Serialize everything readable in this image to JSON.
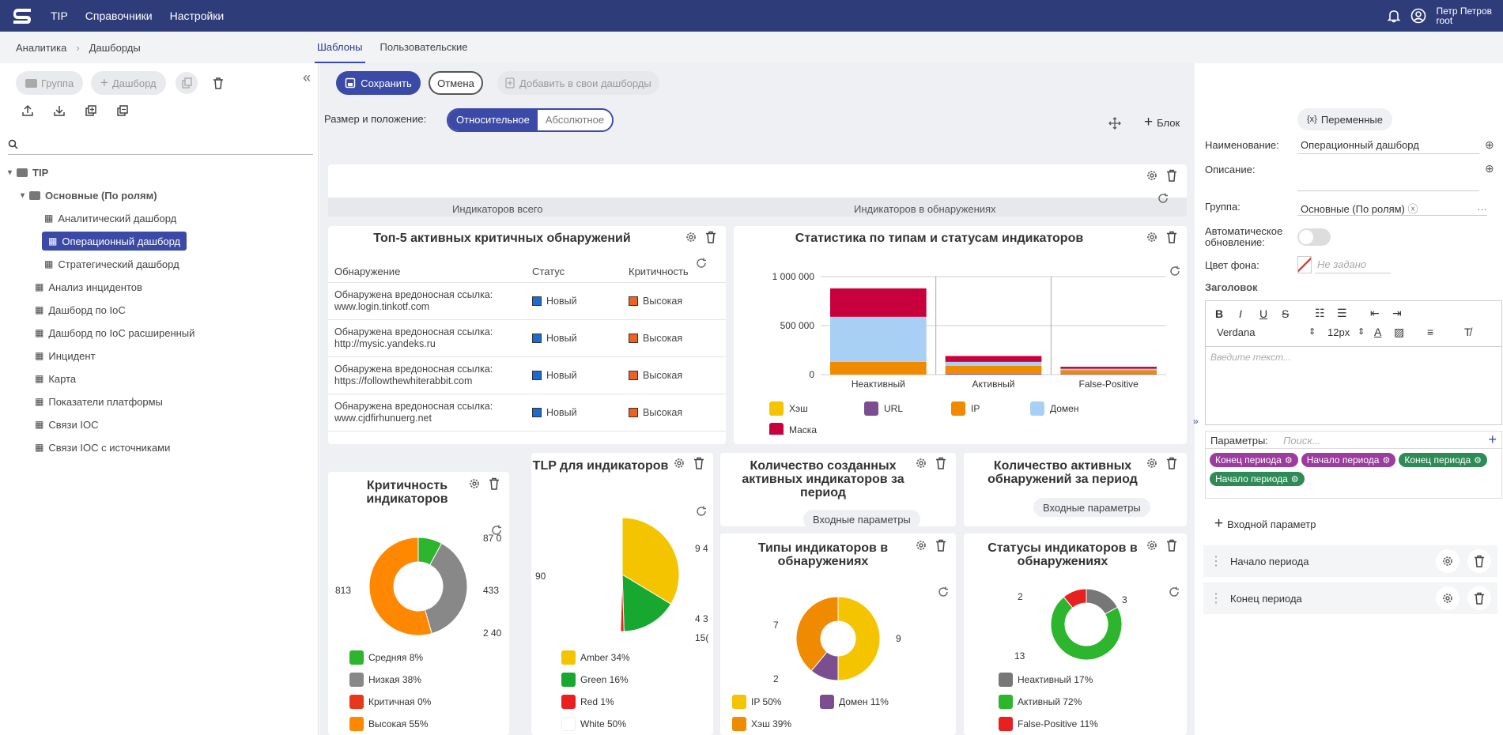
{
  "header": {
    "nav": [
      "TIP",
      "Справочники",
      "Настройки"
    ],
    "user_name": "Петр Петров",
    "user_login": "root"
  },
  "breadcrumb": {
    "items": [
      "Аналитика",
      "Дашборды"
    ]
  },
  "view_tabs": [
    "Шаблоны",
    "Пользовательские"
  ],
  "left": {
    "group_btn": "Группа",
    "dashboard_btn": "Дашборд",
    "search_placeholder": "",
    "tree": {
      "root": "TIP",
      "group": "Основные (По ролям)",
      "children": [
        "Аналитический дашборд",
        "Операционный дашборд",
        "Стратегический дашборд"
      ],
      "items": [
        "Анализ инцидентов",
        "Дашборд по IoC",
        "Дашборд по IoC расширенный",
        "Инцидент",
        "Карта",
        "Показатели платформы",
        "Связи IOC",
        "Связи IOC с источниками"
      ]
    }
  },
  "toolbar": {
    "save": "Сохранить",
    "cancel": "Отмена",
    "add": "Добавить в свои дашборды",
    "size_label": "Размер и положение:",
    "relative": "Относительное",
    "absolute": "Абсолютное",
    "block": "Блок"
  },
  "colors": {
    "accent": "#3b4aa6",
    "topbar": "#2f3c7a"
  },
  "summary": {
    "label1": "Индикаторов всего",
    "label2": "Индикаторов в обнаружениях"
  },
  "top5": {
    "title": "Топ-5 активных критичных обнаружений",
    "headers": [
      "Обнаружение",
      "Статус",
      "Критичность"
    ],
    "rows": [
      {
        "det": "Обнаружена вредоносная ссылка:",
        "url": "www.login.tinkotf.com",
        "status": "Новый",
        "crit": "Высокая"
      },
      {
        "det": "Обнаружена вредоносная ссылка:",
        "url": "http://mysic.yandeks.ru",
        "status": "Новый",
        "crit": "Высокая"
      },
      {
        "det": "Обнаружена вредоносная ссылка:",
        "url": "https://followthewhiterabbit.com",
        "status": "Новый",
        "crit": "Высокая"
      },
      {
        "det": "Обнаружена вредоносная ссылка:",
        "url": "www.cjdfirhunuerg.net",
        "status": "Новый",
        "crit": "Высокая"
      }
    ]
  },
  "chart_data": [
    {
      "type": "bar",
      "title": "Статистика по типам и статусам индикаторов",
      "categories": [
        "Неактивный",
        "Активный",
        "False-Positive"
      ],
      "y_ticks": [
        "1 000 000",
        "500 000",
        "0"
      ],
      "ylim": [
        0,
        1000000
      ],
      "series": [
        {
          "name": "Хэш",
          "color": "#f5c400",
          "values": [
            0,
            0,
            0
          ]
        },
        {
          "name": "URL",
          "color": "#7b4e8f",
          "values": [
            0,
            10000,
            5000
          ]
        },
        {
          "name": "IP",
          "color": "#f08a00",
          "values": [
            130000,
            80000,
            40000
          ]
        },
        {
          "name": "Домен",
          "color": "#a8d0f5",
          "values": [
            460000,
            40000,
            15000
          ]
        },
        {
          "name": "Маска",
          "color": "#c8003c",
          "values": [
            290000,
            60000,
            20000
          ]
        }
      ]
    },
    {
      "type": "pie",
      "title": "Критичность индикаторов",
      "labels": [
        "87 0",
        "433",
        "2 40",
        "813"
      ],
      "legend": [
        "Средняя 8%",
        "Низкая 38%",
        "Критичная 0%",
        "Высокая 55%"
      ],
      "colors": [
        "#2db52d",
        "#888888",
        "#e8381c",
        "#ff8800"
      ],
      "values": [
        8,
        38,
        0,
        55
      ]
    },
    {
      "type": "pie",
      "title": "TLP для индикаторов",
      "labels": [
        "9 4",
        "4 3",
        "15(",
        "90"
      ],
      "legend": [
        "Amber 34%",
        "Green 16%",
        "Red 1%",
        "White 50%"
      ],
      "colors": [
        "#f5c400",
        "#18a830",
        "#e82020",
        "#ffffff"
      ],
      "values": [
        34,
        16,
        1,
        50
      ]
    },
    {
      "type": "pie",
      "title": "Типы индикаторов в обнаружениях",
      "labels": [
        "9",
        "7",
        "2"
      ],
      "legend": [
        "IP 50%",
        "Домен 11%",
        "Хэш 39%"
      ],
      "colors": [
        "#f5c400",
        "#7b4e8f",
        "#f08a00"
      ],
      "values": [
        50,
        11,
        39
      ]
    },
    {
      "type": "pie",
      "title": "Статусы индикаторов в обнаружениях",
      "labels": [
        "2",
        "3",
        "13"
      ],
      "legend": [
        "Неактивный 17%",
        "Активный 72%",
        "False-Positive 11%"
      ],
      "colors": [
        "#777777",
        "#2db52d",
        "#e82020"
      ],
      "values": [
        17,
        72,
        11
      ]
    }
  ],
  "period": {
    "created_title": "Количество созданных активных индикаторов за период",
    "active_title": "Количество активных обнаружений за период",
    "input_params": "Входные параметры"
  },
  "right": {
    "variables": "Переменные",
    "name_label": "Наименование:",
    "name_value": "Операционный дашборд",
    "desc_label": "Описание:",
    "group_label": "Группа:",
    "group_value": "Основные (По ролям)",
    "auto_label": "Автоматическое обновление:",
    "bg_label": "Цвет фона:",
    "bg_value": "Не задано",
    "heading_label": "Заголовок",
    "font": "Verdana",
    "size": "12px",
    "text_placeholder": "Введите текст...",
    "params_label": "Параметры:",
    "params_placeholder": "Поиск...",
    "tags": [
      {
        "label": "Конец периода",
        "color": "#9b3c9e"
      },
      {
        "label": "Начало периода",
        "color": "#9b3c9e"
      },
      {
        "label": "Конец периода",
        "color": "#2e8b57"
      },
      {
        "label": "Начало периода",
        "color": "#2e8b57"
      }
    ],
    "add_param": "Входной параметр",
    "params": [
      "Начало периода",
      "Конец периода"
    ]
  }
}
